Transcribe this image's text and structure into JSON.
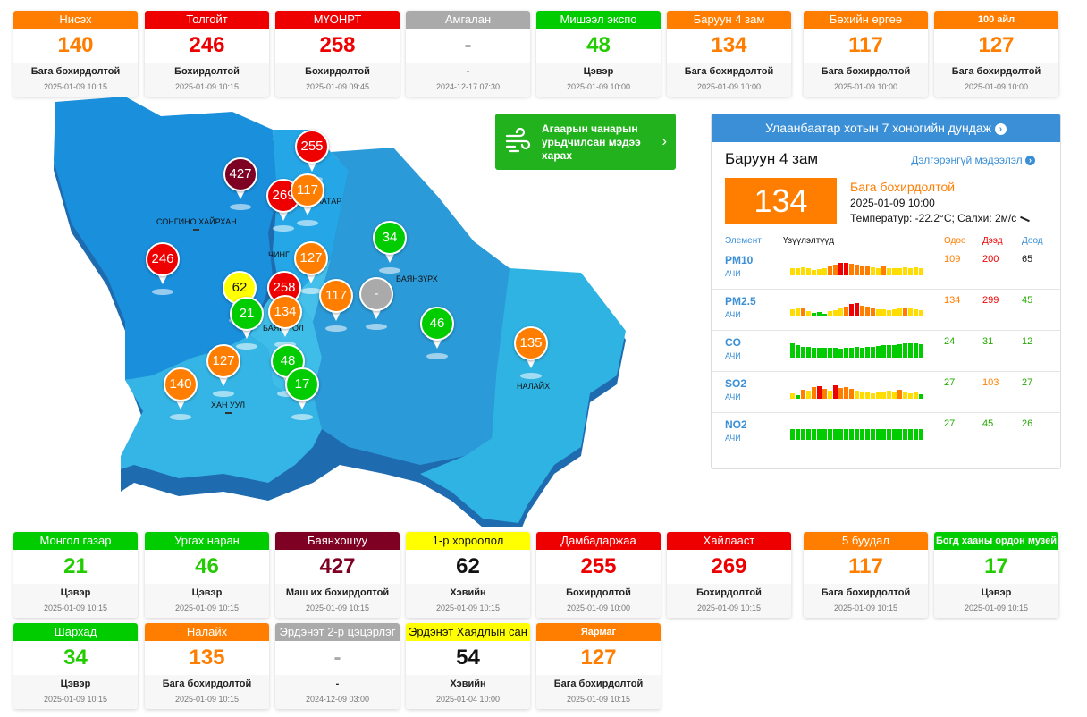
{
  "colors": {
    "good": "#00cc00",
    "moderate": "#ffff00",
    "unhealthy_sensitive": "#ff7e00",
    "unhealthy": "#ee0000",
    "very_unhealthy": "#7e0023",
    "no_data": "#aaaaaa",
    "accent_blue": "#3a8fd6",
    "forecast_green": "#22b21e"
  },
  "top_stations": [
    {
      "name": "Нисэх",
      "aqi": "140",
      "status": "Бага бохирдолтой",
      "time": "2025-01-09 10:15",
      "color": "#ff7e00",
      "value_color": "#ff7e00"
    },
    {
      "name": "Толгойт",
      "aqi": "246",
      "status": "Бохирдолтой",
      "time": "2025-01-09 10:15",
      "color": "#ee0000",
      "value_color": "#ee0000"
    },
    {
      "name": "МҮОНРТ",
      "aqi": "258",
      "status": "Бохирдолтой",
      "time": "2025-01-09 09:45",
      "color": "#ee0000",
      "value_color": "#ee0000"
    },
    {
      "name": "Амгалан",
      "aqi": "-",
      "status": "-",
      "time": "2024-12-17 07:30",
      "color": "#aaaaaa",
      "value_color": "#aaaaaa"
    },
    {
      "name": "Мишээл экспо",
      "aqi": "48",
      "status": "Цэвэр",
      "time": "2025-01-09 10:00",
      "color": "#00cc00",
      "value_color": "#22cc00"
    },
    {
      "name": "Баруун 4 зам",
      "aqi": "134",
      "status": "Бага бохирдолтой",
      "time": "2025-01-09 10:00",
      "color": "#ff7e00",
      "value_color": "#ff7e00"
    },
    {
      "name": "Бөхийн өргөө",
      "aqi": "117",
      "status": "Бага бохирдолтой",
      "time": "2025-01-09 10:00",
      "color": "#ff7e00",
      "value_color": "#ff7e00"
    },
    {
      "name": "100 айл",
      "aqi": "127",
      "status": "Бага бохирдолтой",
      "time": "2025-01-09 10:00",
      "color": "#ff7e00",
      "value_color": "#ff7e00",
      "small": true
    }
  ],
  "bottom_row1": [
    {
      "name": "Монгол газар",
      "aqi": "21",
      "status": "Цэвэр",
      "time": "2025-01-09 10:15",
      "color": "#00cc00",
      "value_color": "#22cc00"
    },
    {
      "name": "Ургах наран",
      "aqi": "46",
      "status": "Цэвэр",
      "time": "2025-01-09 10:15",
      "color": "#00cc00",
      "value_color": "#22cc00"
    },
    {
      "name": "Баянхошуу",
      "aqi": "427",
      "status": "Маш их бохирдолтой",
      "time": "2025-01-09 10:15",
      "color": "#7e0023",
      "value_color": "#7e0023"
    },
    {
      "name": "1-р хороолол",
      "aqi": "62",
      "status": "Хэвийн",
      "time": "2025-01-09 10:15",
      "color": "#ffff00",
      "value_color": "#111111",
      "dark_text": true
    },
    {
      "name": "Дамбадаржаа",
      "aqi": "255",
      "status": "Бохирдолтой",
      "time": "2025-01-09 10:00",
      "color": "#ee0000",
      "value_color": "#ee0000"
    },
    {
      "name": "Хайлааст",
      "aqi": "269",
      "status": "Бохирдолтой",
      "time": "2025-01-09 10:15",
      "color": "#ee0000",
      "value_color": "#ee0000"
    },
    {
      "name": "5 буудал",
      "aqi": "117",
      "status": "Бага бохирдолтой",
      "time": "2025-01-09 10:15",
      "color": "#ff7e00",
      "value_color": "#ff7e00"
    },
    {
      "name": "Богд хааны ордон музей",
      "aqi": "17",
      "status": "Цэвэр",
      "time": "2025-01-09 10:15",
      "color": "#00cc00",
      "value_color": "#22cc00",
      "small": true
    }
  ],
  "bottom_row2": [
    {
      "name": "Шархад",
      "aqi": "34",
      "status": "Цэвэр",
      "time": "2025-01-09 10:15",
      "color": "#00cc00",
      "value_color": "#22cc00"
    },
    {
      "name": "Налайх",
      "aqi": "135",
      "status": "Бага бохирдолтой",
      "time": "2025-01-09 10:15",
      "color": "#ff7e00",
      "value_color": "#ff7e00"
    },
    {
      "name": "Эрдэнэт 2-р цэцэрлэг",
      "aqi": "-",
      "status": "-",
      "time": "2024-12-09 03:00",
      "color": "#aaaaaa",
      "value_color": "#aaaaaa"
    },
    {
      "name": "Эрдэнэт Хаядлын сан",
      "aqi": "54",
      "status": "Хэвийн",
      "time": "2025-01-04 10:00",
      "color": "#ffff00",
      "value_color": "#111111",
      "dark_text": true
    },
    {
      "name": "Яармаг",
      "aqi": "127",
      "status": "Бага бохирдолтой",
      "time": "2025-01-09 10:15",
      "color": "#ff7e00",
      "value_color": "#ff7e00",
      "small": true
    }
  ],
  "map_pins": [
    {
      "value": "255",
      "color": "#ee0000"
    },
    {
      "value": "427",
      "color": "#7e0023"
    },
    {
      "value": "269",
      "color": "#ee0000"
    },
    {
      "value": "117",
      "color": "#ff7e00"
    },
    {
      "value": "34",
      "color": "#00cc00"
    },
    {
      "value": "246",
      "color": "#ee0000"
    },
    {
      "value": "127",
      "color": "#ff7e00"
    },
    {
      "value": "62",
      "color": "#ffff00",
      "dark_text": true
    },
    {
      "value": "258",
      "color": "#ee0000"
    },
    {
      "value": "117",
      "color": "#ff7e00"
    },
    {
      "value": "-",
      "color": "#aaaaaa"
    },
    {
      "value": "21",
      "color": "#00cc00"
    },
    {
      "value": "134",
      "color": "#ff7e00"
    },
    {
      "value": "46",
      "color": "#00cc00"
    },
    {
      "value": "135",
      "color": "#ff7e00"
    },
    {
      "value": "127",
      "color": "#ff7e00"
    },
    {
      "value": "48",
      "color": "#00cc00"
    },
    {
      "value": "140",
      "color": "#ff7e00"
    },
    {
      "value": "17",
      "color": "#00cc00"
    }
  ],
  "map_districts": {
    "songinokhairkhan": "СОНГИНО ХАЙРХАН",
    "sukhbaatar_fragment": "БААТАР",
    "chingeltei_fragment": "ЧИНГ",
    "bayanzurkh": "БАЯНЗҮРХ",
    "bayangol_fragment": "БАЯН",
    "bayangol_suffix": "ОЛ",
    "khanuul": "ХАН УУЛ",
    "nalaikh": "НАЛАЙХ"
  },
  "forecast": {
    "line1": "Агаарын чанарын",
    "line2": "урьдчилсан мэдээ",
    "line3": "харах"
  },
  "panel": {
    "header": "Улаанбаатар хотын 7 хоногийн дундаж",
    "station": "Баруун 4 зам",
    "details_link": "Дэлгэрэнгүй мэдээлэл",
    "aqi": "134",
    "status": "Бага бохирдолтой",
    "time": "2025-01-09 10:00",
    "weather": "Температур: -22.2°C; Салхи: 2м/с",
    "col_element": "Элемент",
    "col_trend": "Үзүүлэлтүүд",
    "col_current": "Одоо",
    "col_max": "Дээд",
    "col_min": "Доод",
    "pollutants": [
      {
        "name": "PM10",
        "unit": "АЧИ",
        "current": "109",
        "max": "200",
        "min": "65",
        "current_color": "#ff7e00",
        "max_color": "#ee0000",
        "min_color": "#111111",
        "bars": [
          0.4,
          0.42,
          0.45,
          0.38,
          0.3,
          0.35,
          0.4,
          0.5,
          0.62,
          0.7,
          0.72,
          0.66,
          0.6,
          0.55,
          0.5,
          0.45,
          0.42,
          0.48,
          0.4,
          0.38,
          0.42,
          0.45,
          0.4,
          0.44,
          0.38
        ]
      },
      {
        "name": "PM2.5",
        "unit": "АЧИ",
        "current": "134",
        "max": "299",
        "min": "45",
        "current_color": "#ff7e00",
        "max_color": "#ee0000",
        "min_color": "#22aa00",
        "bars": [
          0.4,
          0.45,
          0.5,
          0.3,
          0.2,
          0.25,
          0.15,
          0.3,
          0.35,
          0.45,
          0.55,
          0.7,
          0.75,
          0.62,
          0.55,
          0.48,
          0.4,
          0.38,
          0.35,
          0.42,
          0.45,
          0.5,
          0.44,
          0.4,
          0.35
        ]
      },
      {
        "name": "CO",
        "unit": "АЧИ",
        "current": "24",
        "max": "31",
        "min": "12",
        "current_color": "#22aa00",
        "max_color": "#22aa00",
        "min_color": "#22aa00",
        "bars": [
          0.78,
          0.7,
          0.62,
          0.58,
          0.55,
          0.55,
          0.55,
          0.55,
          0.55,
          0.52,
          0.55,
          0.55,
          0.58,
          0.55,
          0.58,
          0.62,
          0.65,
          0.68,
          0.7,
          0.72,
          0.75,
          0.78,
          0.8,
          0.78,
          0.76
        ]
      },
      {
        "name": "SO2",
        "unit": "АЧИ",
        "current": "27",
        "max": "103",
        "min": "27",
        "current_color": "#22aa00",
        "max_color": "#ff7e00",
        "min_color": "#22aa00",
        "bars": [
          0.3,
          0.2,
          0.5,
          0.45,
          0.65,
          0.7,
          0.55,
          0.45,
          0.75,
          0.6,
          0.65,
          0.55,
          0.45,
          0.4,
          0.35,
          0.3,
          0.4,
          0.35,
          0.45,
          0.4,
          0.5,
          0.35,
          0.3,
          0.4,
          0.25
        ]
      },
      {
        "name": "NO2",
        "unit": "АЧИ",
        "current": "27",
        "max": "45",
        "min": "26",
        "current_color": "#22aa00",
        "max_color": "#22aa00",
        "min_color": "#22aa00",
        "bars": [
          0.62,
          0.58,
          0.6,
          0.62,
          0.6,
          0.58,
          0.62,
          0.6,
          0.58,
          0.62,
          0.62,
          0.6,
          0.58,
          0.62,
          0.6,
          0.62,
          0.58,
          0.6,
          0.62,
          0.6,
          0.58,
          0.6,
          0.62,
          0.6,
          0.62
        ]
      }
    ]
  }
}
